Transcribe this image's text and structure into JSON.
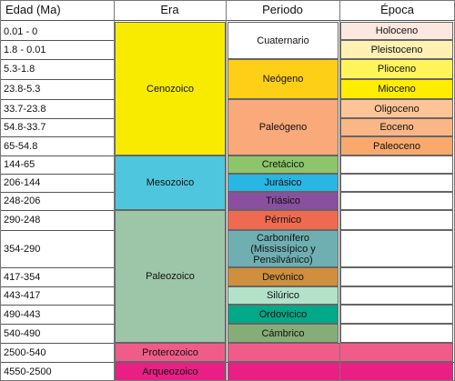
{
  "headers": {
    "age": "Edad (Ma)",
    "era": "Era",
    "period": "Periodo",
    "epoch": "Época"
  },
  "ages": [
    "0.01 - 0",
    "1.8 - 0.01",
    "5.3-1.8",
    "23.8-5.3",
    "33.7-23.8",
    "54.8-33.7",
    "65-54.8",
    "144-65",
    "206-144",
    "248-206",
    "290-248",
    "354-290",
    "417-354",
    "443-417",
    "490-443",
    "540-490",
    "2500-540",
    "4550-2500"
  ],
  "eras": [
    {
      "name": "Cenozoico",
      "color": "#f8eb00"
    },
    {
      "name": "Mesozoico",
      "color": "#4ec6de"
    },
    {
      "name": "Paleozoico",
      "color": "#9dc6a8"
    },
    {
      "name": "Proterozoico",
      "color": "#f05c8a"
    },
    {
      "name": "Arqueozoico",
      "color": "#ea1f86"
    }
  ],
  "periods": [
    {
      "name": "Cuaternario",
      "color": "#ffffff"
    },
    {
      "name": "Neógeno",
      "color": "#fdd017"
    },
    {
      "name": "Paleógeno",
      "color": "#f9a97a"
    },
    {
      "name": "Cretácico",
      "color": "#8dc66a"
    },
    {
      "name": "Jurásico",
      "color": "#28b6e3"
    },
    {
      "name": "Triásico",
      "color": "#8a4f9f"
    },
    {
      "name": "Pérmico",
      "color": "#ef6a50"
    },
    {
      "name": "Carbonífero (Mississípico y Pensilvánico)",
      "color": "#6fafb2"
    },
    {
      "name": "Devónico",
      "color": "#cf8f3e"
    },
    {
      "name": "Silúrico",
      "color": "#b3e2c9"
    },
    {
      "name": "Ordovícico",
      "color": "#00a988"
    },
    {
      "name": "Cámbrico",
      "color": "#86ad78"
    }
  ],
  "epochs": [
    {
      "name": "Holoceno",
      "color": "#fde8df"
    },
    {
      "name": "Pleistoceno",
      "color": "#fff1b3"
    },
    {
      "name": "Plioceno",
      "color": "#fff55a"
    },
    {
      "name": "Mioceno",
      "color": "#ffed00"
    },
    {
      "name": "Oligoceno",
      "color": "#fdc596"
    },
    {
      "name": "Eoceno",
      "color": "#fbb686"
    },
    {
      "name": "Paleoceno",
      "color": "#f9a96c"
    }
  ],
  "precambrian_color_1": "#f05c8a",
  "precambrian_color_2": "#ea1f86"
}
